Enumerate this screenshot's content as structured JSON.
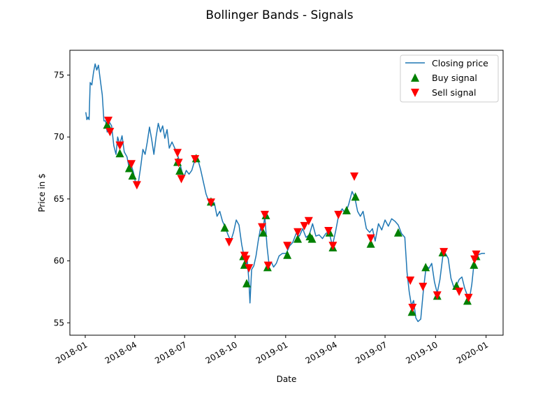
{
  "chart_data": {
    "type": "line",
    "title": "Bollinger Bands - Signals",
    "xlabel": "Date",
    "ylabel": "Price in $",
    "xlim": [
      "2017-12-04",
      "2020-02-01"
    ],
    "ylim": [
      54,
      77
    ],
    "x_ticks": [
      "2018-01",
      "2018-04",
      "2018-07",
      "2018-10",
      "2019-01",
      "2019-04",
      "2019-07",
      "2019-10",
      "2020-01"
    ],
    "y_ticks": [
      55,
      60,
      65,
      70,
      75
    ],
    "legend": {
      "position": "upper right",
      "entries": [
        "Closing price",
        "Buy signal",
        "Sell signal"
      ]
    },
    "colors": {
      "line": "#1f77b4",
      "buy": "#008000",
      "sell": "#ff0000"
    },
    "series": [
      {
        "name": "Closing price",
        "type": "line",
        "points": [
          [
            "2018-01-02",
            72.0
          ],
          [
            "2018-01-04",
            71.4
          ],
          [
            "2018-01-06",
            71.6
          ],
          [
            "2018-01-08",
            71.4
          ],
          [
            "2018-01-10",
            74.4
          ],
          [
            "2018-01-13",
            74.2
          ],
          [
            "2018-01-16",
            75.2
          ],
          [
            "2018-01-19",
            75.9
          ],
          [
            "2018-01-22",
            75.4
          ],
          [
            "2018-01-25",
            75.8
          ],
          [
            "2018-01-29",
            74.4
          ],
          [
            "2018-02-01",
            73.4
          ],
          [
            "2018-02-04",
            71.3
          ],
          [
            "2018-02-07",
            71.3
          ],
          [
            "2018-02-10",
            70.4
          ],
          [
            "2018-02-14",
            71.2
          ],
          [
            "2018-02-18",
            70.9
          ],
          [
            "2018-02-22",
            69.3
          ],
          [
            "2018-02-26",
            68.6
          ],
          [
            "2018-03-01",
            70.0
          ],
          [
            "2018-03-05",
            69.4
          ],
          [
            "2018-03-09",
            70.1
          ],
          [
            "2018-03-13",
            68.8
          ],
          [
            "2018-03-18",
            68.4
          ],
          [
            "2018-03-22",
            67.5
          ],
          [
            "2018-03-26",
            67.7
          ],
          [
            "2018-03-30",
            67.1
          ],
          [
            "2018-04-04",
            66.0
          ],
          [
            "2018-04-08",
            66.4
          ],
          [
            "2018-04-12",
            67.6
          ],
          [
            "2018-04-16",
            69.0
          ],
          [
            "2018-04-20",
            68.6
          ],
          [
            "2018-04-24",
            69.6
          ],
          [
            "2018-04-28",
            70.8
          ],
          [
            "2018-05-02",
            69.8
          ],
          [
            "2018-05-06",
            68.6
          ],
          [
            "2018-05-10",
            70.0
          ],
          [
            "2018-05-14",
            71.1
          ],
          [
            "2018-05-18",
            70.4
          ],
          [
            "2018-05-22",
            70.9
          ],
          [
            "2018-05-26",
            69.9
          ],
          [
            "2018-05-30",
            70.6
          ],
          [
            "2018-06-03",
            69.1
          ],
          [
            "2018-06-08",
            69.6
          ],
          [
            "2018-06-13",
            69.1
          ],
          [
            "2018-06-18",
            68.6
          ],
          [
            "2018-06-21",
            68.1
          ],
          [
            "2018-06-25",
            67.4
          ],
          [
            "2018-06-29",
            66.7
          ],
          [
            "2018-07-04",
            67.3
          ],
          [
            "2018-07-09",
            67.0
          ],
          [
            "2018-07-14",
            67.3
          ],
          [
            "2018-07-20",
            68.2
          ],
          [
            "2018-07-25",
            68.2
          ],
          [
            "2018-07-30",
            67.4
          ],
          [
            "2018-08-04",
            66.4
          ],
          [
            "2018-08-09",
            65.4
          ],
          [
            "2018-08-14",
            64.8
          ],
          [
            "2018-08-19",
            64.4
          ],
          [
            "2018-08-24",
            64.7
          ],
          [
            "2018-08-29",
            63.6
          ],
          [
            "2018-09-03",
            64.0
          ],
          [
            "2018-09-08",
            63.2
          ],
          [
            "2018-09-13",
            62.7
          ],
          [
            "2018-09-18",
            62.1
          ],
          [
            "2018-09-23",
            61.6
          ],
          [
            "2018-09-28",
            62.3
          ],
          [
            "2018-10-03",
            63.3
          ],
          [
            "2018-10-08",
            62.9
          ],
          [
            "2018-10-13",
            61.3
          ],
          [
            "2018-10-17",
            60.4
          ],
          [
            "2018-10-20",
            59.5
          ],
          [
            "2018-10-23",
            60.1
          ],
          [
            "2018-10-26",
            58.4
          ],
          [
            "2018-10-28",
            56.6
          ],
          [
            "2018-10-31",
            59.3
          ],
          [
            "2018-11-04",
            59.6
          ],
          [
            "2018-11-08",
            60.4
          ],
          [
            "2018-11-12",
            61.6
          ],
          [
            "2018-11-16",
            62.6
          ],
          [
            "2018-11-20",
            62.3
          ],
          [
            "2018-11-24",
            63.6
          ],
          [
            "2018-11-28",
            61.2
          ],
          [
            "2018-12-02",
            59.6
          ],
          [
            "2018-12-06",
            59.9
          ],
          [
            "2018-12-10",
            59.5
          ],
          [
            "2018-12-15",
            59.8
          ],
          [
            "2018-12-20",
            60.4
          ],
          [
            "2018-12-26",
            60.6
          ],
          [
            "2019-01-02",
            60.6
          ],
          [
            "2019-01-08",
            61.2
          ],
          [
            "2019-01-14",
            61.5
          ],
          [
            "2019-01-20",
            62.2
          ],
          [
            "2019-01-26",
            62.0
          ],
          [
            "2019-02-01",
            62.6
          ],
          [
            "2019-02-07",
            61.9
          ],
          [
            "2019-02-13",
            62.1
          ],
          [
            "2019-02-19",
            63.0
          ],
          [
            "2019-02-25",
            62.0
          ],
          [
            "2019-03-03",
            62.1
          ],
          [
            "2019-03-09",
            61.8
          ],
          [
            "2019-03-15",
            62.2
          ],
          [
            "2019-03-21",
            62.4
          ],
          [
            "2019-03-27",
            61.2
          ],
          [
            "2019-04-02",
            62.4
          ],
          [
            "2019-04-08",
            63.8
          ],
          [
            "2019-04-14",
            64.2
          ],
          [
            "2019-04-20",
            63.8
          ],
          [
            "2019-04-26",
            64.6
          ],
          [
            "2019-05-02",
            65.6
          ],
          [
            "2019-05-07",
            65.1
          ],
          [
            "2019-05-12",
            64.0
          ],
          [
            "2019-05-17",
            63.6
          ],
          [
            "2019-05-22",
            64.0
          ],
          [
            "2019-05-28",
            62.6
          ],
          [
            "2019-06-03",
            62.3
          ],
          [
            "2019-06-08",
            62.6
          ],
          [
            "2019-06-13",
            61.6
          ],
          [
            "2019-06-19",
            63.0
          ],
          [
            "2019-06-25",
            62.5
          ],
          [
            "2019-07-01",
            63.3
          ],
          [
            "2019-07-07",
            62.8
          ],
          [
            "2019-07-13",
            63.4
          ],
          [
            "2019-07-19",
            63.2
          ],
          [
            "2019-07-25",
            62.9
          ],
          [
            "2019-07-31",
            62.2
          ],
          [
            "2019-08-06",
            61.9
          ],
          [
            "2019-08-10",
            59.1
          ],
          [
            "2019-08-14",
            57.5
          ],
          [
            "2019-08-18",
            56.4
          ],
          [
            "2019-08-22",
            56.8
          ],
          [
            "2019-08-26",
            55.4
          ],
          [
            "2019-08-30",
            55.1
          ],
          [
            "2019-09-04",
            55.3
          ],
          [
            "2019-09-09",
            57.7
          ],
          [
            "2019-09-14",
            59.6
          ],
          [
            "2019-09-19",
            59.4
          ],
          [
            "2019-09-24",
            59.8
          ],
          [
            "2019-09-29",
            58.3
          ],
          [
            "2019-10-04",
            57.4
          ],
          [
            "2019-10-09",
            58.5
          ],
          [
            "2019-10-14",
            60.3
          ],
          [
            "2019-10-19",
            60.6
          ],
          [
            "2019-10-24",
            60.2
          ],
          [
            "2019-10-29",
            58.6
          ],
          [
            "2019-11-03",
            57.9
          ],
          [
            "2019-11-08",
            58.0
          ],
          [
            "2019-11-13",
            58.5
          ],
          [
            "2019-11-18",
            58.7
          ],
          [
            "2019-11-23",
            57.8
          ],
          [
            "2019-11-28",
            57.2
          ],
          [
            "2019-12-02",
            57.0
          ],
          [
            "2019-12-06",
            58.1
          ],
          [
            "2019-12-10",
            59.8
          ],
          [
            "2019-12-14",
            60.3
          ],
          [
            "2019-12-18",
            60.5
          ],
          [
            "2019-12-24",
            60.6
          ],
          [
            "2019-12-30",
            60.6
          ]
        ]
      },
      {
        "name": "Buy signal",
        "type": "scatter",
        "marker": "triangle-up",
        "points": [
          [
            "2018-02-10",
            71.0
          ],
          [
            "2018-03-05",
            68.7
          ],
          [
            "2018-03-22",
            67.5
          ],
          [
            "2018-03-28",
            66.9
          ],
          [
            "2018-06-18",
            68.0
          ],
          [
            "2018-06-22",
            67.3
          ],
          [
            "2018-07-22",
            68.3
          ],
          [
            "2018-08-18",
            64.8
          ],
          [
            "2018-09-12",
            62.7
          ],
          [
            "2018-10-16",
            60.4
          ],
          [
            "2018-10-18",
            59.7
          ],
          [
            "2018-10-22",
            58.2
          ],
          [
            "2018-11-21",
            62.3
          ],
          [
            "2018-11-26",
            63.7
          ],
          [
            "2018-11-29",
            59.5
          ],
          [
            "2019-01-04",
            60.5
          ],
          [
            "2019-01-23",
            61.8
          ],
          [
            "2019-02-14",
            62.0
          ],
          [
            "2019-02-18",
            61.8
          ],
          [
            "2019-03-22",
            62.3
          ],
          [
            "2019-03-28",
            61.1
          ],
          [
            "2019-04-22",
            64.1
          ],
          [
            "2019-05-08",
            65.2
          ],
          [
            "2019-06-05",
            61.4
          ],
          [
            "2019-07-25",
            62.3
          ],
          [
            "2019-08-19",
            55.9
          ],
          [
            "2019-09-13",
            59.5
          ],
          [
            "2019-10-04",
            57.2
          ],
          [
            "2019-10-14",
            60.7
          ],
          [
            "2019-11-08",
            58.0
          ],
          [
            "2019-11-28",
            56.8
          ],
          [
            "2019-12-10",
            59.7
          ],
          [
            "2019-12-14",
            60.4
          ]
        ]
      },
      {
        "name": "Sell signal",
        "type": "scatter",
        "marker": "triangle-down",
        "points": [
          [
            "2018-02-12",
            71.3
          ],
          [
            "2018-02-15",
            70.4
          ],
          [
            "2018-03-05",
            69.3
          ],
          [
            "2018-03-26",
            67.8
          ],
          [
            "2018-04-05",
            66.1
          ],
          [
            "2018-06-18",
            68.7
          ],
          [
            "2018-06-20",
            67.9
          ],
          [
            "2018-06-25",
            66.6
          ],
          [
            "2018-07-20",
            68.2
          ],
          [
            "2018-08-18",
            64.7
          ],
          [
            "2018-09-20",
            61.5
          ],
          [
            "2018-10-18",
            60.4
          ],
          [
            "2018-10-21",
            60.1
          ],
          [
            "2018-10-26",
            59.4
          ],
          [
            "2018-11-19",
            62.7
          ],
          [
            "2018-11-24",
            63.7
          ],
          [
            "2018-11-30",
            59.6
          ],
          [
            "2019-01-04",
            61.2
          ],
          [
            "2019-01-23",
            62.3
          ],
          [
            "2019-02-04",
            62.8
          ],
          [
            "2019-02-12",
            63.2
          ],
          [
            "2019-03-20",
            62.4
          ],
          [
            "2019-03-28",
            61.2
          ],
          [
            "2019-04-07",
            63.7
          ],
          [
            "2019-05-06",
            66.8
          ],
          [
            "2019-06-05",
            61.8
          ],
          [
            "2019-08-16",
            58.4
          ],
          [
            "2019-08-20",
            56.2
          ],
          [
            "2019-09-08",
            57.9
          ],
          [
            "2019-10-04",
            57.2
          ],
          [
            "2019-10-16",
            60.7
          ],
          [
            "2019-11-13",
            57.5
          ],
          [
            "2019-11-30",
            57.0
          ],
          [
            "2019-12-11",
            60.1
          ],
          [
            "2019-12-14",
            60.5
          ]
        ]
      }
    ]
  }
}
